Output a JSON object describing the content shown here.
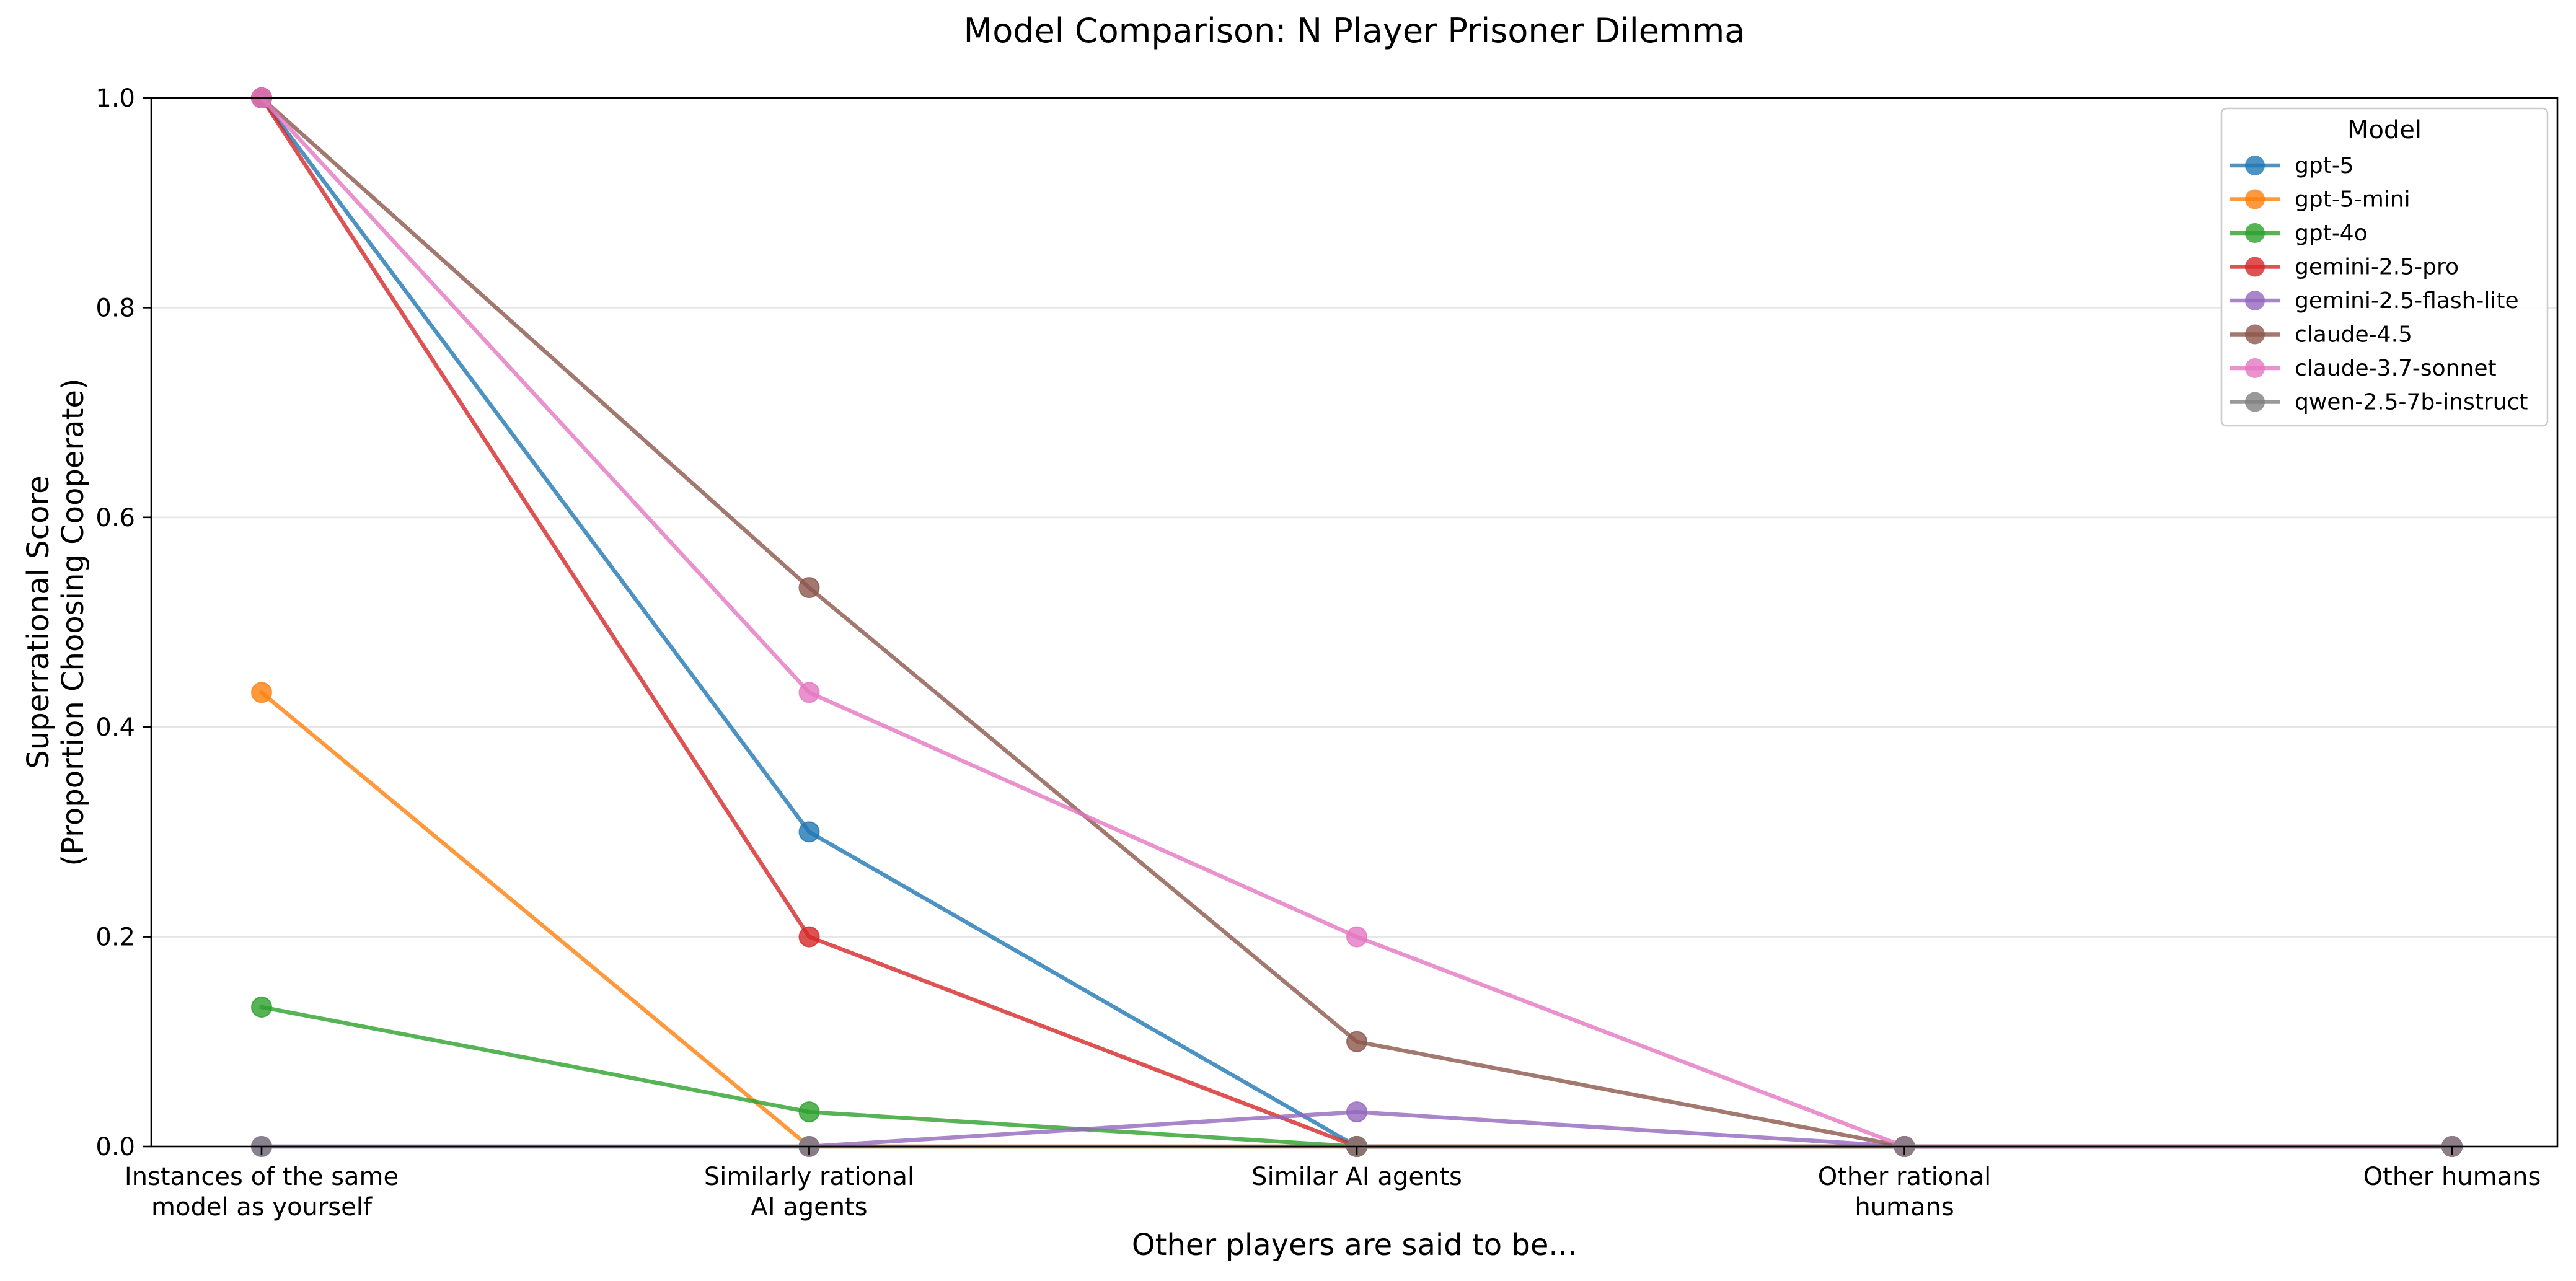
{
  "chart_data": {
    "type": "line",
    "title": "Model Comparison: N Player Prisoner Dilemma",
    "xlabel": "Other players are said to be...",
    "ylabel": [
      "Superrational Score",
      "(Proportion Choosing Cooperate)"
    ],
    "categories": [
      [
        "Instances of the same",
        "model as yourself"
      ],
      [
        "Similarly rational",
        "AI agents"
      ],
      [
        "Similar AI agents"
      ],
      [
        "Other rational",
        "humans"
      ],
      [
        "Other humans"
      ]
    ],
    "ylim": [
      0,
      1.0
    ],
    "yticks": [
      "0.0",
      "0.2",
      "0.4",
      "0.6",
      "0.8",
      "1.0"
    ],
    "grid": "horizontal",
    "legend": {
      "title": "Model",
      "placement": "top-right"
    },
    "series": [
      {
        "name": "gpt-5",
        "color": "#1f77b4",
        "values": [
          1.0,
          0.3,
          0.0,
          0.0,
          0.0
        ]
      },
      {
        "name": "gpt-5-mini",
        "color": "#ff7f0e",
        "values": [
          0.433,
          0.0,
          0.0,
          0.0,
          0.0
        ]
      },
      {
        "name": "gpt-4o",
        "color": "#2ca02c",
        "values": [
          0.133,
          0.033,
          0.0,
          0.0,
          0.0
        ]
      },
      {
        "name": "gemini-2.5-pro",
        "color": "#d62728",
        "values": [
          1.0,
          0.2,
          0.0,
          0.0,
          0.0
        ]
      },
      {
        "name": "gemini-2.5-flash-lite",
        "color": "#9467bd",
        "values": [
          0.0,
          0.0,
          0.033,
          0.0,
          0.0
        ]
      },
      {
        "name": "claude-4.5",
        "color": "#8c564b",
        "values": [
          1.0,
          0.533,
          0.1,
          0.0,
          0.0
        ]
      },
      {
        "name": "claude-3.7-sonnet",
        "color": "#e377c2",
        "values": [
          1.0,
          0.433,
          0.2,
          0.0,
          0.0
        ]
      },
      {
        "name": "qwen-2.5-7b-instruct",
        "color": "#7f7f7f",
        "values": [
          0.0,
          0.0,
          0.0,
          0.0,
          0.0
        ]
      }
    ]
  }
}
